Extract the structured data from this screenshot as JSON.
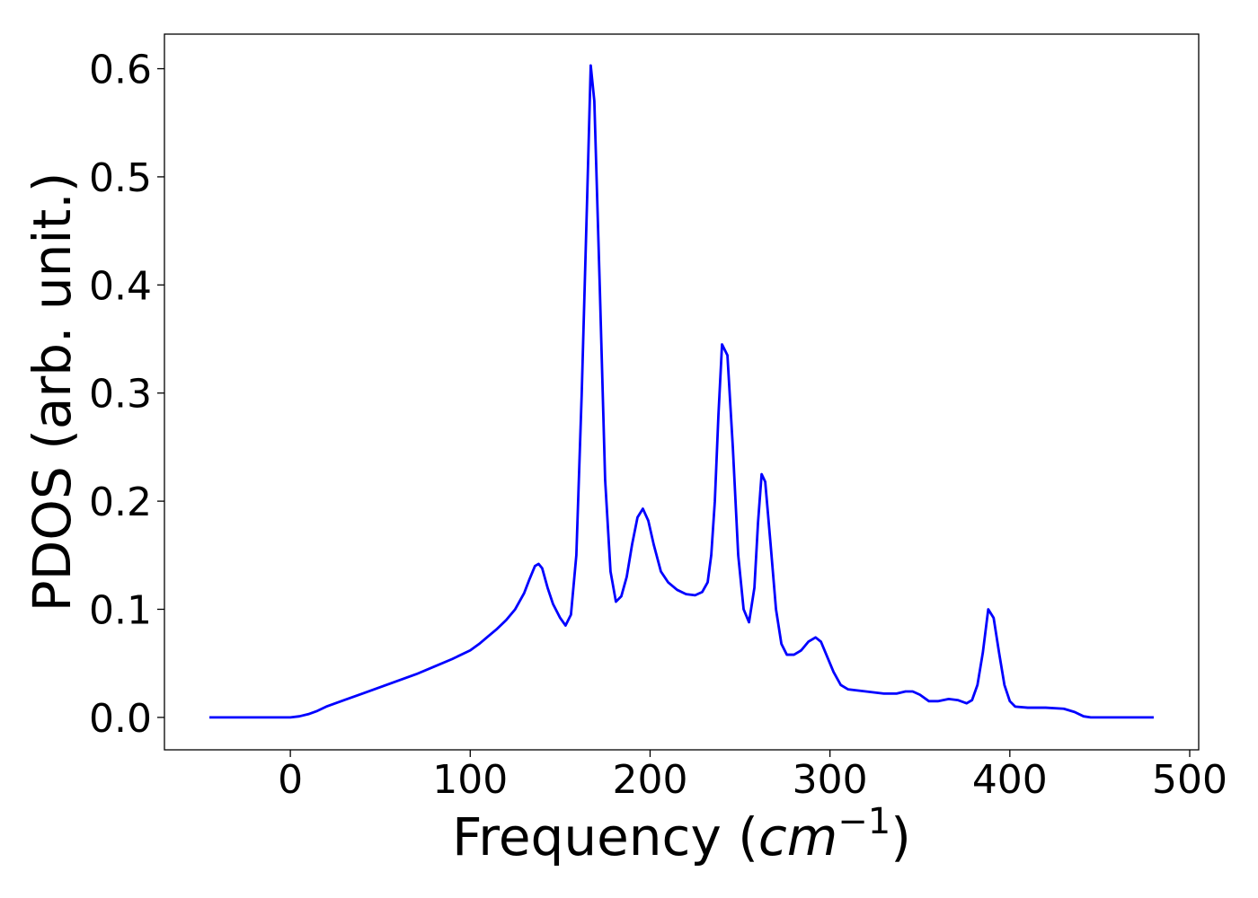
{
  "chart_data": {
    "type": "line",
    "title": "",
    "xlabel": "Frequency (",
    "xlabel_math": "cm",
    "xlabel_sup": "−1",
    "xlabel_close": ")",
    "ylabel": "PDOS (arb. unit.)",
    "xlim": [
      -70,
      505
    ],
    "ylim": [
      -0.03,
      0.632
    ],
    "xticks": [
      0,
      100,
      200,
      300,
      400,
      500
    ],
    "xtick_labels": [
      "0",
      "100",
      "200",
      "300",
      "400",
      "500"
    ],
    "yticks": [
      0.0,
      0.1,
      0.2,
      0.3,
      0.4,
      0.5,
      0.6
    ],
    "ytick_labels": [
      "0.0",
      "0.1",
      "0.2",
      "0.3",
      "0.4",
      "0.5",
      "0.6"
    ],
    "grid": false,
    "series": [
      {
        "color": "#0000ff",
        "points": [
          [
            -45,
            0.0
          ],
          [
            -20,
            0.0
          ],
          [
            0,
            0.0
          ],
          [
            5,
            0.001
          ],
          [
            10,
            0.003
          ],
          [
            15,
            0.006
          ],
          [
            20,
            0.01
          ],
          [
            30,
            0.016
          ],
          [
            40,
            0.022
          ],
          [
            50,
            0.028
          ],
          [
            60,
            0.034
          ],
          [
            70,
            0.04
          ],
          [
            80,
            0.047
          ],
          [
            90,
            0.054
          ],
          [
            100,
            0.062
          ],
          [
            105,
            0.068
          ],
          [
            110,
            0.075
          ],
          [
            115,
            0.082
          ],
          [
            120,
            0.09
          ],
          [
            125,
            0.1
          ],
          [
            130,
            0.115
          ],
          [
            133,
            0.128
          ],
          [
            136,
            0.14
          ],
          [
            138,
            0.142
          ],
          [
            140,
            0.138
          ],
          [
            143,
            0.12
          ],
          [
            146,
            0.105
          ],
          [
            150,
            0.092
          ],
          [
            153,
            0.085
          ],
          [
            156,
            0.095
          ],
          [
            159,
            0.15
          ],
          [
            162,
            0.3
          ],
          [
            165,
            0.48
          ],
          [
            167,
            0.603
          ],
          [
            169,
            0.57
          ],
          [
            172,
            0.4
          ],
          [
            175,
            0.22
          ],
          [
            178,
            0.135
          ],
          [
            181,
            0.107
          ],
          [
            184,
            0.112
          ],
          [
            187,
            0.13
          ],
          [
            190,
            0.16
          ],
          [
            193,
            0.185
          ],
          [
            196,
            0.193
          ],
          [
            199,
            0.182
          ],
          [
            202,
            0.16
          ],
          [
            206,
            0.135
          ],
          [
            210,
            0.125
          ],
          [
            215,
            0.118
          ],
          [
            220,
            0.114
          ],
          [
            225,
            0.113
          ],
          [
            229,
            0.116
          ],
          [
            232,
            0.125
          ],
          [
            234,
            0.15
          ],
          [
            236,
            0.2
          ],
          [
            238,
            0.28
          ],
          [
            240,
            0.345
          ],
          [
            243,
            0.335
          ],
          [
            246,
            0.25
          ],
          [
            249,
            0.15
          ],
          [
            252,
            0.1
          ],
          [
            255,
            0.088
          ],
          [
            258,
            0.12
          ],
          [
            260,
            0.18
          ],
          [
            262,
            0.225
          ],
          [
            264,
            0.218
          ],
          [
            267,
            0.16
          ],
          [
            270,
            0.1
          ],
          [
            273,
            0.068
          ],
          [
            276,
            0.058
          ],
          [
            280,
            0.058
          ],
          [
            284,
            0.062
          ],
          [
            288,
            0.07
          ],
          [
            292,
            0.074
          ],
          [
            295,
            0.07
          ],
          [
            298,
            0.058
          ],
          [
            302,
            0.042
          ],
          [
            306,
            0.03
          ],
          [
            310,
            0.026
          ],
          [
            320,
            0.024
          ],
          [
            330,
            0.022
          ],
          [
            337,
            0.022
          ],
          [
            342,
            0.024
          ],
          [
            346,
            0.024
          ],
          [
            350,
            0.021
          ],
          [
            355,
            0.015
          ],
          [
            360,
            0.015
          ],
          [
            366,
            0.017
          ],
          [
            371,
            0.016
          ],
          [
            376,
            0.013
          ],
          [
            379,
            0.016
          ],
          [
            382,
            0.03
          ],
          [
            385,
            0.06
          ],
          [
            388,
            0.1
          ],
          [
            391,
            0.092
          ],
          [
            394,
            0.06
          ],
          [
            397,
            0.03
          ],
          [
            400,
            0.015
          ],
          [
            403,
            0.01
          ],
          [
            410,
            0.009
          ],
          [
            420,
            0.009
          ],
          [
            430,
            0.008
          ],
          [
            436,
            0.005
          ],
          [
            441,
            0.001
          ],
          [
            445,
            0.0
          ],
          [
            460,
            0.0
          ],
          [
            480,
            0.0
          ]
        ]
      }
    ]
  }
}
